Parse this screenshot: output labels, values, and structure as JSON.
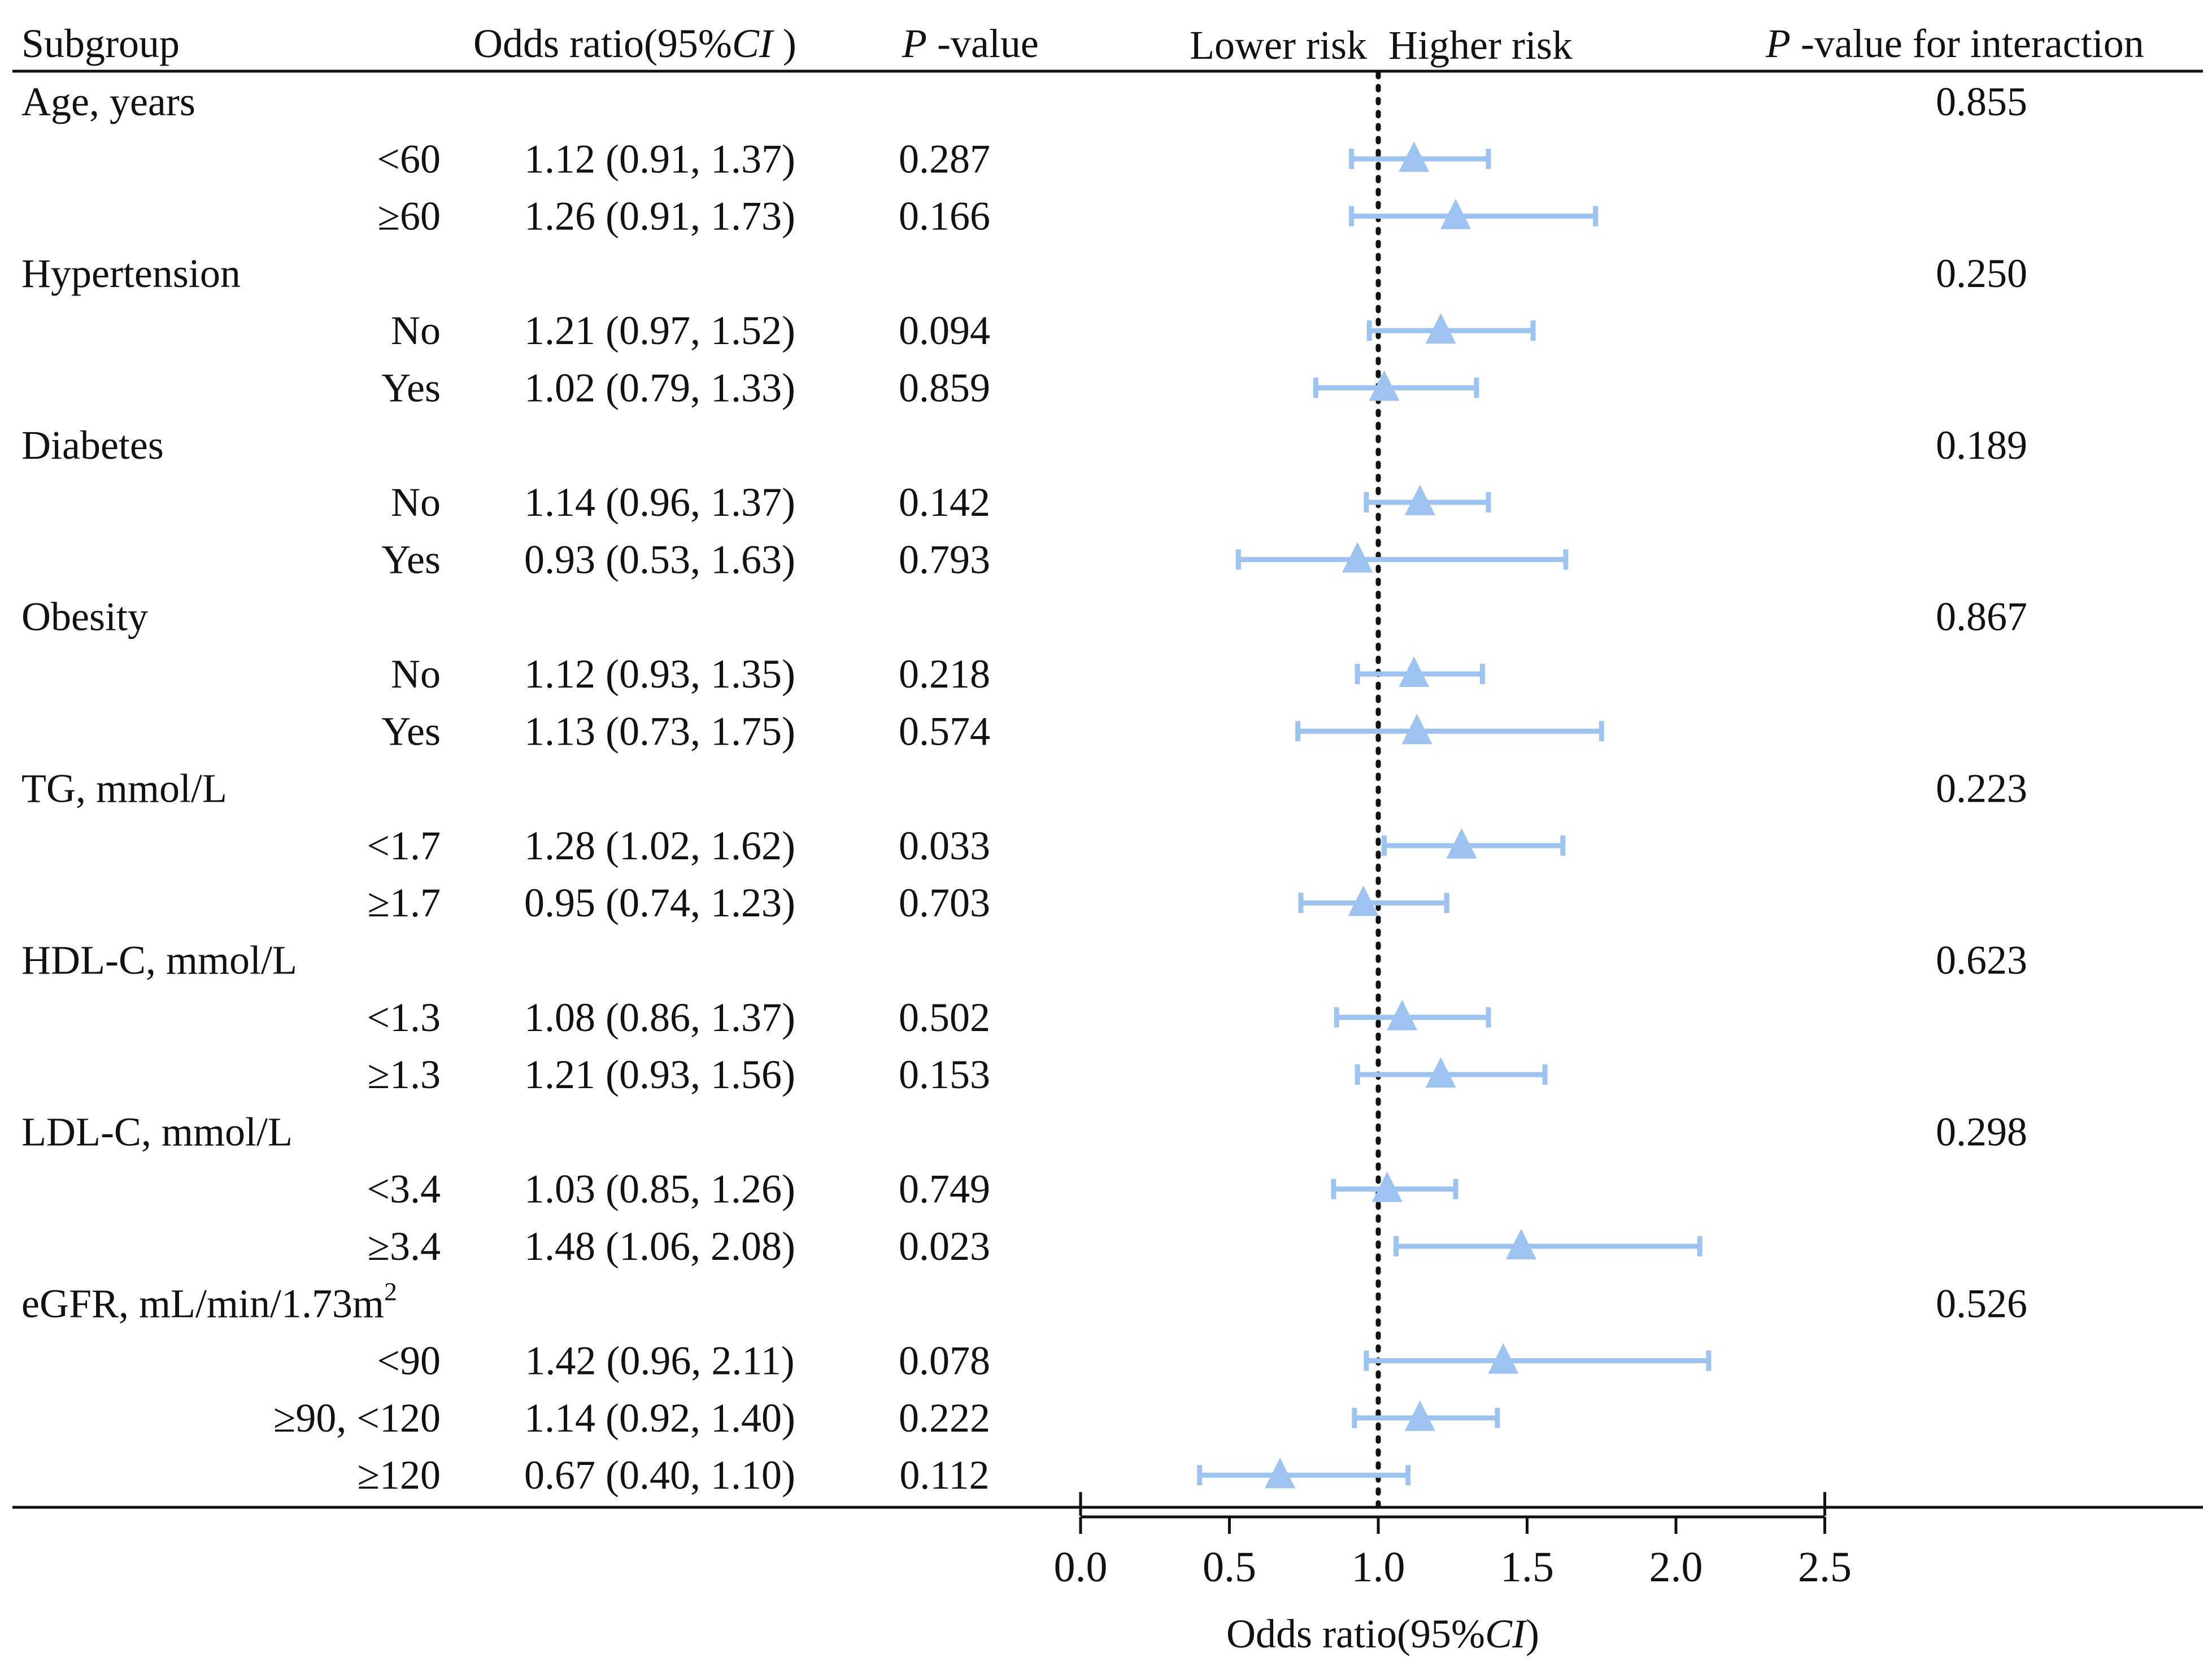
{
  "chart_data": {
    "type": "forest",
    "headers": {
      "subgroup": "Subgroup",
      "or_prefix": "Odds ratio(95%",
      "or_ci": "CI",
      "or_suffix": " )",
      "p_italic": "P",
      "p_rest": " -value",
      "lower_risk": "Lower risk",
      "higher_risk": "Higher risk",
      "pint_italic": "P",
      "pint_rest": " -value for interaction"
    },
    "xaxis": {
      "label_prefix": "Odds ratio(95%",
      "label_ci": "CI",
      "label_suffix": ")",
      "min": 0.0,
      "max": 2.5,
      "ticks": [
        "0.0",
        "0.5",
        "1.0",
        "1.5",
        "2.0",
        "2.5"
      ],
      "tick_values": [
        0.0,
        0.5,
        1.0,
        1.5,
        2.0,
        2.5
      ],
      "reference_line": 1.0
    },
    "marker_color": "#9DC3F0",
    "text_color": "#111111",
    "groups": [
      {
        "label": "Age, years",
        "p_interaction": "0.855",
        "rows": [
          {
            "label": "<60",
            "or_text": "1.12 (0.91, 1.37)",
            "p": "0.287",
            "or": 1.12,
            "lo": 0.91,
            "hi": 1.37
          },
          {
            "label": "≥60",
            "or_text": "1.26 (0.91, 1.73)",
            "p": "0.166",
            "or": 1.26,
            "lo": 0.91,
            "hi": 1.73
          }
        ]
      },
      {
        "label": "Hypertension",
        "p_interaction": "0.250",
        "rows": [
          {
            "label": "No",
            "or_text": "1.21 (0.97, 1.52)",
            "p": "0.094",
            "or": 1.21,
            "lo": 0.97,
            "hi": 1.52
          },
          {
            "label": "Yes",
            "or_text": "1.02 (0.79, 1.33)",
            "p": "0.859",
            "or": 1.02,
            "lo": 0.79,
            "hi": 1.33
          }
        ]
      },
      {
        "label": "Diabetes",
        "p_interaction": "0.189",
        "rows": [
          {
            "label": "No",
            "or_text": "1.14 (0.96, 1.37)",
            "p": "0.142",
            "or": 1.14,
            "lo": 0.96,
            "hi": 1.37
          },
          {
            "label": "Yes",
            "or_text": "0.93 (0.53, 1.63)",
            "p": "0.793",
            "or": 0.93,
            "lo": 0.53,
            "hi": 1.63
          }
        ]
      },
      {
        "label": "Obesity",
        "p_interaction": "0.867",
        "rows": [
          {
            "label": "No",
            "or_text": "1.12 (0.93, 1.35)",
            "p": "0.218",
            "or": 1.12,
            "lo": 0.93,
            "hi": 1.35
          },
          {
            "label": "Yes",
            "or_text": "1.13 (0.73, 1.75)",
            "p": "0.574",
            "or": 1.13,
            "lo": 0.73,
            "hi": 1.75
          }
        ]
      },
      {
        "label": "TG, mmol/L",
        "p_interaction": "0.223",
        "rows": [
          {
            "label": "<1.7",
            "or_text": "1.28 (1.02, 1.62)",
            "p": "0.033",
            "or": 1.28,
            "lo": 1.02,
            "hi": 1.62
          },
          {
            "label": "≥1.7",
            "or_text": "0.95 (0.74, 1.23)",
            "p": "0.703",
            "or": 0.95,
            "lo": 0.74,
            "hi": 1.23
          }
        ]
      },
      {
        "label": "HDL-C, mmol/L",
        "p_interaction": "0.623",
        "rows": [
          {
            "label": "<1.3",
            "or_text": "1.08 (0.86, 1.37)",
            "p": "0.502",
            "or": 1.08,
            "lo": 0.86,
            "hi": 1.37
          },
          {
            "label": "≥1.3",
            "or_text": "1.21 (0.93, 1.56)",
            "p": "0.153",
            "or": 1.21,
            "lo": 0.93,
            "hi": 1.56
          }
        ]
      },
      {
        "label": "LDL-C, mmol/L",
        "p_interaction": "0.298",
        "rows": [
          {
            "label": "<3.4",
            "or_text": "1.03 (0.85, 1.26)",
            "p": "0.749",
            "or": 1.03,
            "lo": 0.85,
            "hi": 1.26
          },
          {
            "label": "≥3.4",
            "or_text": "1.48 (1.06, 2.08)",
            "p": "0.023",
            "or": 1.48,
            "lo": 1.06,
            "hi": 2.08
          }
        ]
      },
      {
        "label": "eGFR, mL/min/1.73m",
        "label_sup": "2",
        "p_interaction": "0.526",
        "rows": [
          {
            "label": "<90",
            "or_text": "1.42 (0.96, 2.11)",
            "p": "0.078",
            "or": 1.42,
            "lo": 0.96,
            "hi": 2.11
          },
          {
            "label": "≥90, <120",
            "or_text": "1.14 (0.92, 1.40)",
            "p": "0.222",
            "or": 1.14,
            "lo": 0.92,
            "hi": 1.4
          },
          {
            "label": "≥120",
            "or_text": "0.67 (0.40, 1.10)",
            "p": "0.112",
            "or": 0.67,
            "lo": 0.4,
            "hi": 1.1
          }
        ]
      }
    ]
  }
}
